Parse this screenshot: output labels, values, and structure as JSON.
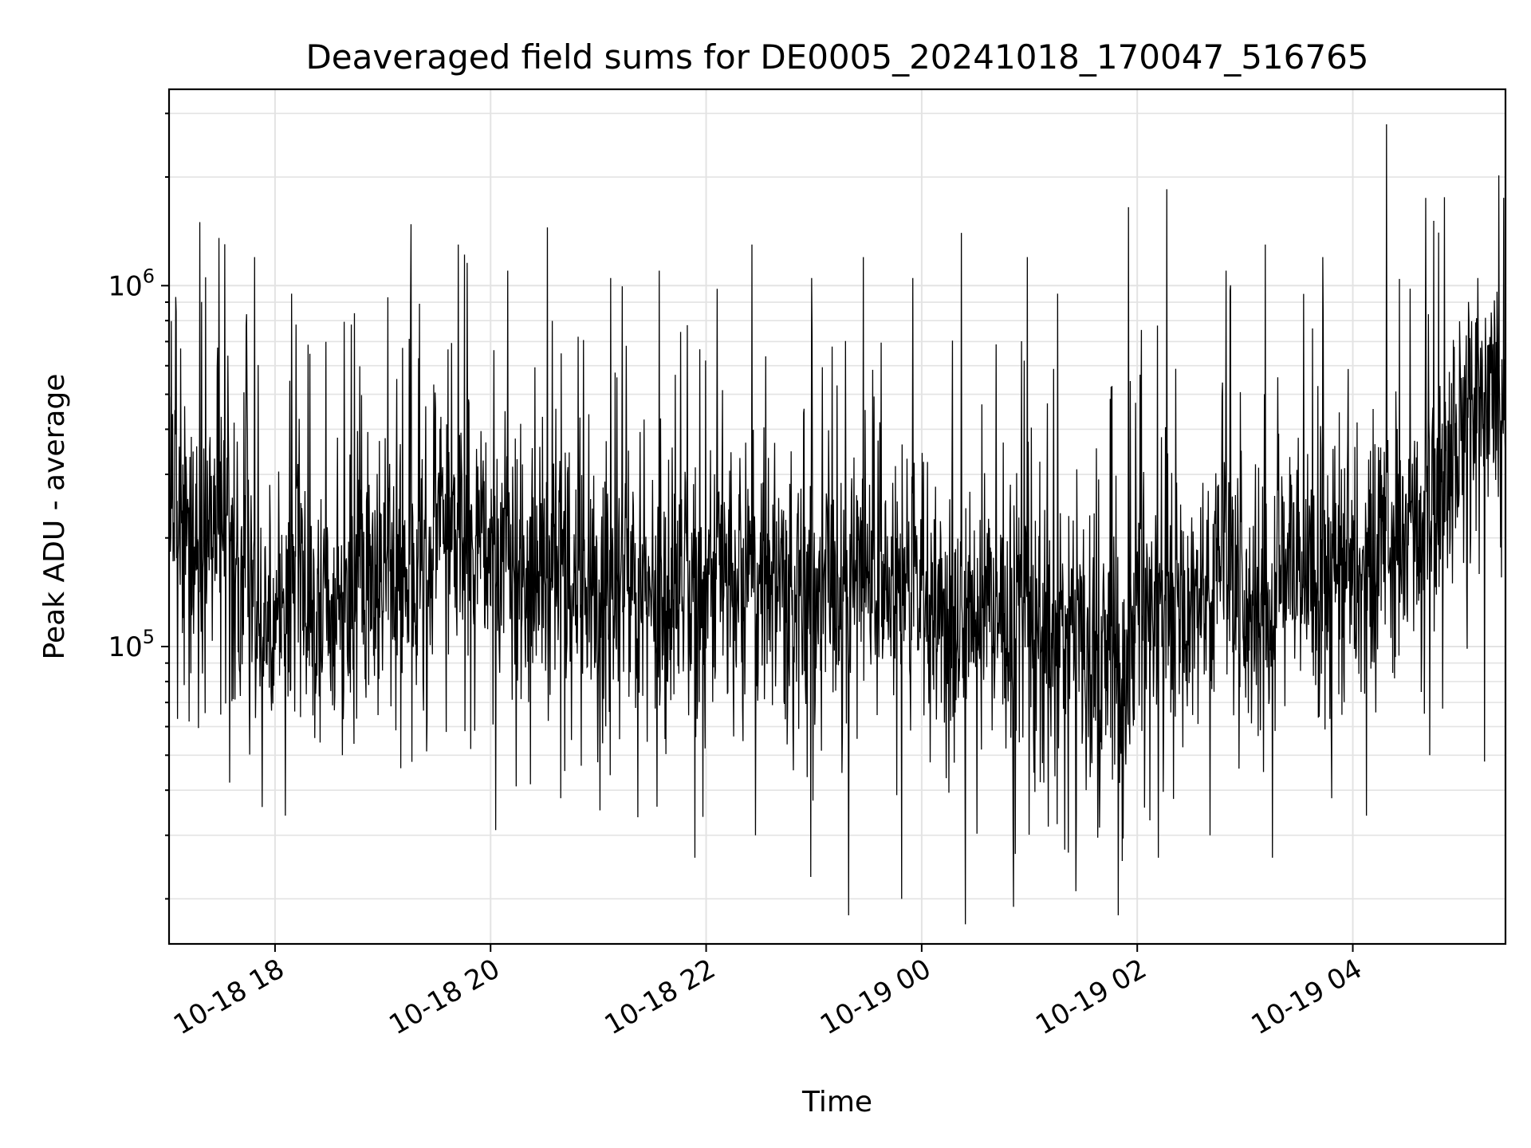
{
  "chart_data": {
    "type": "line",
    "title": "Deaveraged field sums for DE0005_20241018_170047_516765",
    "xlabel": "Time",
    "ylabel": "Peak ADU - average",
    "yscale": "log",
    "ylim": [
      15000,
      3500000
    ],
    "xlim": [
      "2024-10-18 17:01",
      "2024-10-19 05:25"
    ],
    "grid": true,
    "line_color": "#000000",
    "x_ticks": [
      "10-18 18",
      "10-18 20",
      "10-18 22",
      "10-19 00",
      "10-19 02",
      "10-19 04"
    ],
    "x_tick_times": [
      "2024-10-18 18:00",
      "2024-10-18 20:00",
      "2024-10-18 22:00",
      "2024-10-19 00:00",
      "2024-10-19 02:00",
      "2024-10-19 04:00"
    ],
    "y_ticks": [
      {
        "value": 100000,
        "base": "10",
        "exp": "5"
      },
      {
        "value": 1000000,
        "base": "10",
        "exp": "6"
      }
    ],
    "series": [
      {
        "x": [
          "2024-10-18 17:01",
          "2024-10-18 17:10",
          "2024-10-18 17:20",
          "2024-10-18 17:30",
          "2024-10-18 17:40",
          "2024-10-18 17:50",
          "2024-10-18 18:00",
          "2024-10-18 18:10",
          "2024-10-18 18:20",
          "2024-10-18 18:30",
          "2024-10-18 18:40",
          "2024-10-18 18:50",
          "2024-10-18 19:00",
          "2024-10-18 19:10",
          "2024-10-18 19:20",
          "2024-10-18 19:30",
          "2024-10-18 19:40",
          "2024-10-18 19:50",
          "2024-10-18 20:00",
          "2024-10-18 20:10",
          "2024-10-18 20:20",
          "2024-10-18 20:30",
          "2024-10-18 20:40",
          "2024-10-18 20:50",
          "2024-10-18 21:00",
          "2024-10-18 21:10",
          "2024-10-18 21:20",
          "2024-10-18 21:30",
          "2024-10-18 21:40",
          "2024-10-18 21:50",
          "2024-10-18 22:00",
          "2024-10-18 22:10",
          "2024-10-18 22:20",
          "2024-10-18 22:30",
          "2024-10-18 22:40",
          "2024-10-18 22:50",
          "2024-10-18 23:00",
          "2024-10-18 23:10",
          "2024-10-18 23:20",
          "2024-10-18 23:30",
          "2024-10-18 23:40",
          "2024-10-18 23:50",
          "2024-10-19 00:00",
          "2024-10-19 00:10",
          "2024-10-19 00:20",
          "2024-10-19 00:30",
          "2024-10-19 00:40",
          "2024-10-19 00:50",
          "2024-10-19 01:00",
          "2024-10-19 01:10",
          "2024-10-19 01:20",
          "2024-10-19 01:30",
          "2024-10-19 01:40",
          "2024-10-19 01:50",
          "2024-10-19 02:00",
          "2024-10-19 02:10",
          "2024-10-19 02:20",
          "2024-10-19 02:30",
          "2024-10-19 02:40",
          "2024-10-19 02:50",
          "2024-10-19 03:00",
          "2024-10-19 03:10",
          "2024-10-19 03:20",
          "2024-10-19 03:30",
          "2024-10-19 03:40",
          "2024-10-19 03:50",
          "2024-10-19 04:00",
          "2024-10-19 04:10",
          "2024-10-19 04:20",
          "2024-10-19 04:30",
          "2024-10-19 04:40",
          "2024-10-19 04:50",
          "2024-10-19 05:00",
          "2024-10-19 05:10",
          "2024-10-19 05:20",
          "2024-10-19 05:25"
        ],
        "y": [
          240000,
          220000,
          200000,
          250000,
          190000,
          130000,
          100000,
          200000,
          130000,
          110000,
          140000,
          170000,
          160000,
          180000,
          170000,
          210000,
          240000,
          200000,
          180000,
          190000,
          160000,
          150000,
          170000,
          160000,
          150000,
          170000,
          140000,
          160000,
          130000,
          150000,
          140000,
          160000,
          180000,
          170000,
          150000,
          140000,
          130000,
          160000,
          140000,
          150000,
          160000,
          140000,
          150000,
          120000,
          110000,
          130000,
          140000,
          120000,
          110000,
          120000,
          100000,
          110000,
          100000,
          90000,
          120000,
          130000,
          110000,
          130000,
          150000,
          170000,
          130000,
          120000,
          150000,
          160000,
          140000,
          160000,
          170000,
          180000,
          190000,
          210000,
          250000,
          280000,
          350000,
          500000,
          550000,
          400000
        ],
        "peaks": [
          1500000,
          1200000,
          950000,
          780000,
          1480000,
          1300000,
          1100000,
          1450000,
          1050000,
          1100000,
          980000,
          1300000,
          1050000,
          1200000,
          1050000,
          1400000,
          1200000,
          950000,
          1650000,
          1850000,
          1100000,
          1300000,
          1200000,
          2800000,
          1750000,
          1050000
        ],
        "troughs": [
          62000,
          42000,
          34000,
          50000,
          46000,
          58000,
          31000,
          38000,
          44000,
          36000,
          26000,
          30000,
          23000,
          18000,
          20000,
          17000,
          19000,
          21000,
          18000,
          26000,
          30000,
          26000,
          38000,
          34000,
          50000,
          48000
        ]
      }
    ]
  }
}
